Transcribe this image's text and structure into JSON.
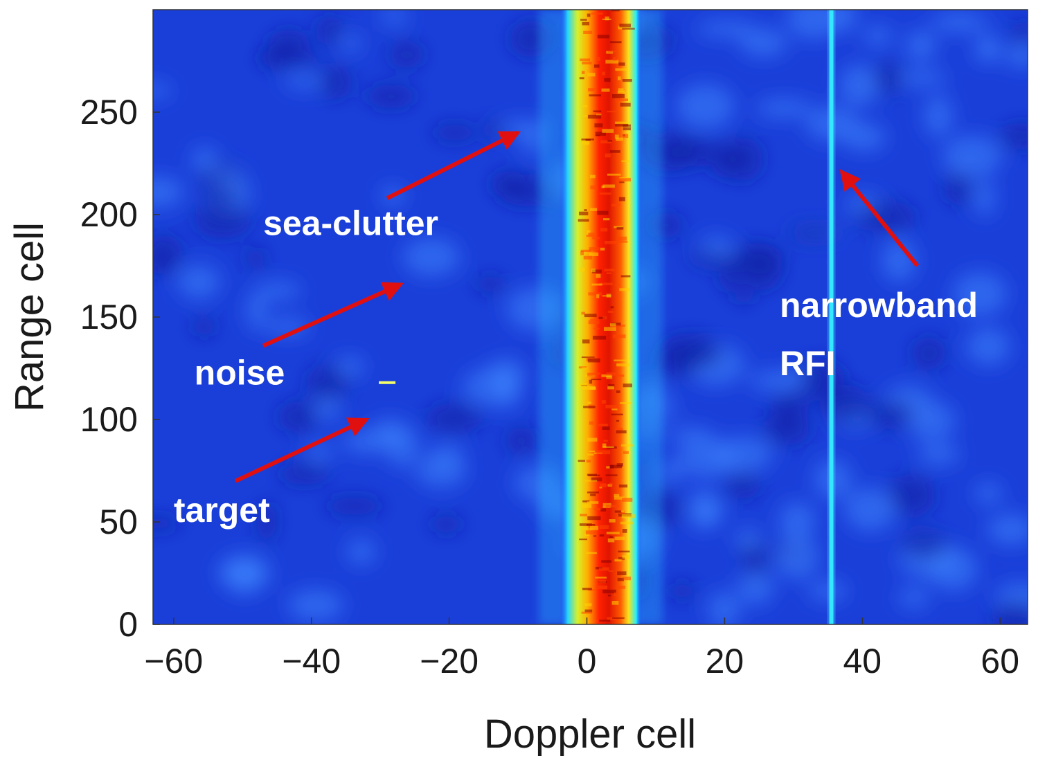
{
  "chart_data": {
    "type": "heatmap",
    "title": "",
    "xlabel": "Doppler cell",
    "ylabel": "Range cell",
    "xlim": [
      -63,
      64
    ],
    "ylim": [
      0,
      300
    ],
    "xticks": [
      -60,
      -40,
      -20,
      0,
      20,
      40,
      60
    ],
    "xtick_labels": [
      "−60",
      "−40",
      "−20",
      "0",
      "20",
      "40",
      "60"
    ],
    "yticks": [
      0,
      50,
      100,
      150,
      200,
      250
    ],
    "ytick_labels": [
      "0",
      "50",
      "100",
      "150",
      "200",
      "250"
    ],
    "colormap": "jet",
    "grid": false,
    "features": {
      "sea_clutter_band": {
        "center": 2,
        "core_half_width": 4,
        "edge_half_width": 6
      },
      "rfi_line": {
        "doppler": 35.5
      },
      "target": {
        "doppler": -29,
        "range": 118
      }
    },
    "annotations": [
      {
        "name": "sea-clutter",
        "label": "sea-clutter",
        "text_at": [
          -47,
          190
        ],
        "arrow_from": [
          -29,
          208
        ],
        "arrow_to": [
          -10,
          240
        ]
      },
      {
        "name": "noise",
        "label": "noise",
        "text_at": [
          -57,
          117
        ],
        "arrow_from": [
          -47,
          136
        ],
        "arrow_to": [
          -27,
          166
        ]
      },
      {
        "name": "target",
        "label": "target",
        "text_at": [
          -60,
          50
        ],
        "arrow_from": [
          -51,
          70
        ],
        "arrow_to": [
          -32,
          100
        ]
      },
      {
        "name": "rfi",
        "lines": [
          "narrowband",
          "RFI"
        ],
        "text_at": [
          28,
          150
        ],
        "arrow_from": [
          48,
          175
        ],
        "arrow_to": [
          37,
          221
        ]
      }
    ],
    "annotation_color": "#ffffff",
    "arrow_color": "#e01010"
  }
}
